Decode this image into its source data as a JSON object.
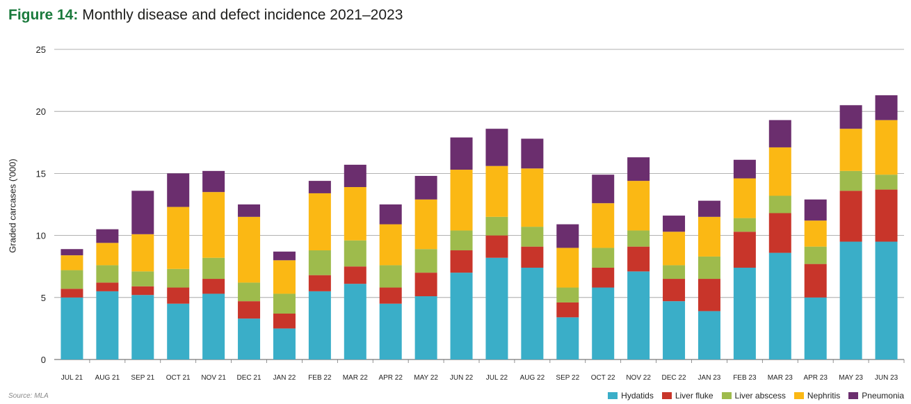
{
  "figure_label": "Figure 14:",
  "title": "Monthly disease and defect incidence 2021–2023",
  "source": "Source: MLA",
  "chart_data": {
    "type": "bar",
    "stacked": true,
    "ylabel": "Graded carcases ('000)",
    "ylim": [
      0,
      25
    ],
    "yticks": [
      0,
      5,
      10,
      15,
      20,
      25
    ],
    "grid": true,
    "legend_position": "bottom-right",
    "categories": [
      "JUL 21",
      "AUG 21",
      "SEP 21",
      "OCT 21",
      "NOV 21",
      "DEC 21",
      "JAN 22",
      "FEB 22",
      "MAR 22",
      "APR 22",
      "MAY 22",
      "JUN 22",
      "JUL 22",
      "AUG 22",
      "SEP 22",
      "OCT 22",
      "NOV 22",
      "DEC 22",
      "JAN 23",
      "FEB 23",
      "MAR 23",
      "APR 23",
      "MAY 23",
      "JUN 23"
    ],
    "series": [
      {
        "name": "Hydatids",
        "color": "#3aaec8",
        "values": [
          5.0,
          5.5,
          5.2,
          4.5,
          5.3,
          3.3,
          2.5,
          5.5,
          6.1,
          4.5,
          5.1,
          7.0,
          8.2,
          7.4,
          3.4,
          5.8,
          7.1,
          4.7,
          3.9,
          7.4,
          8.6,
          5.0,
          9.5,
          9.5
        ]
      },
      {
        "name": "Liver fluke",
        "color": "#c8352a",
        "values": [
          0.7,
          0.7,
          0.7,
          1.3,
          1.2,
          1.4,
          1.2,
          1.3,
          1.4,
          1.3,
          1.9,
          1.8,
          1.8,
          1.7,
          1.2,
          1.6,
          2.0,
          1.8,
          2.6,
          2.9,
          3.2,
          2.7,
          4.1,
          4.2
        ]
      },
      {
        "name": "Liver abscess",
        "color": "#9ebb4c",
        "values": [
          1.5,
          1.4,
          1.2,
          1.5,
          1.7,
          1.5,
          1.6,
          2.0,
          2.1,
          1.8,
          1.9,
          1.6,
          1.5,
          1.6,
          1.2,
          1.6,
          1.3,
          1.1,
          1.8,
          1.1,
          1.4,
          1.4,
          1.6,
          1.2
        ]
      },
      {
        "name": "Nephritis",
        "color": "#fbb814",
        "values": [
          1.2,
          1.8,
          3.0,
          5.0,
          5.3,
          5.3,
          2.7,
          4.6,
          4.3,
          3.3,
          4.0,
          4.9,
          4.1,
          4.7,
          3.2,
          3.6,
          4.0,
          2.7,
          3.2,
          3.2,
          3.9,
          2.1,
          3.4,
          4.4
        ]
      },
      {
        "name": "Pneumonia",
        "color": "#6b2e6e",
        "values": [
          0.5,
          1.1,
          3.5,
          2.7,
          1.7,
          1.0,
          0.7,
          1.0,
          1.8,
          1.6,
          1.9,
          2.6,
          3.0,
          2.4,
          1.9,
          2.3,
          1.9,
          1.3,
          1.3,
          1.5,
          2.2,
          1.7,
          1.9,
          2.0
        ]
      }
    ]
  }
}
